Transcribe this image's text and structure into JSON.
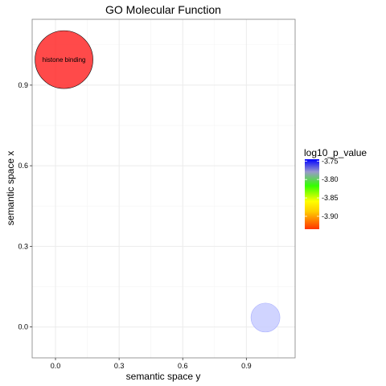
{
  "chart_data": {
    "type": "scatter",
    "title": "GO Molecular Function",
    "xlabel": "semantic space y",
    "ylabel": "semantic space x",
    "xlim": [
      -0.11,
      1.13
    ],
    "ylim": [
      -0.115,
      1.145
    ],
    "x_ticks": [
      0.0,
      0.3,
      0.6,
      0.9
    ],
    "x_tick_labels": [
      "0.0",
      "0.3",
      "0.6",
      "0.9"
    ],
    "y_ticks": [
      0.0,
      0.3,
      0.6,
      0.9
    ],
    "y_tick_labels": [
      "0.0",
      "0.3",
      "0.6",
      "0.9"
    ],
    "grid": true,
    "points": [
      {
        "x": 0.04,
        "y": 0.995,
        "size": 1.0,
        "log10_p_value": -3.93,
        "color": "#ff2a2a",
        "label": "histone binding"
      },
      {
        "x": 0.99,
        "y": 0.035,
        "size": 0.16,
        "log10_p_value": -3.75,
        "color": "#c8ccff",
        "label": ""
      }
    ],
    "legend": {
      "title": "log10_p_value",
      "position": "right",
      "ticks": [
        -3.75,
        -3.8,
        -3.85,
        -3.9
      ],
      "tick_labels": [
        "-3.75",
        "-3.80",
        "-3.85",
        "-3.90"
      ],
      "range": [
        -3.935,
        -3.745
      ],
      "gradient_colors": [
        "#ff3300",
        "#ffcc00",
        "#ffff00",
        "#33ff00",
        "#9999cc",
        "#0000ff"
      ]
    }
  }
}
